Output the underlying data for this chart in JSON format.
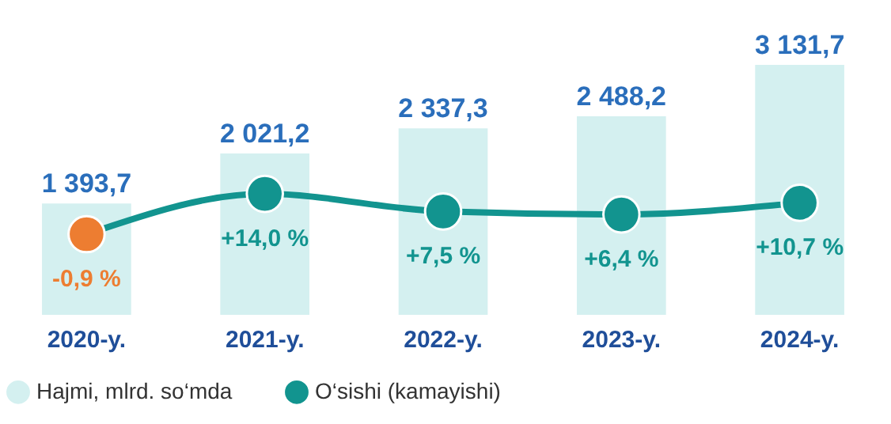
{
  "chart_data": {
    "type": "bar",
    "categories": [
      "2020-y.",
      "2021-y.",
      "2022-y.",
      "2023-y.",
      "2024-y."
    ],
    "legend": "bottom",
    "marker": "circle",
    "series": [
      {
        "name": "Hajmi, mlrd. so‘mda",
        "color": "#d4f0f0",
        "values": [
          1393.7,
          2021.2,
          2337.3,
          2488.2,
          3131.7
        ],
        "value_labels": [
          "1 393,7",
          "2 021,2",
          "2 337,3",
          "2 488,2",
          "3 131,7"
        ]
      },
      {
        "name": "O‘sishi (kamayishi)",
        "type": "line",
        "axis": "y2",
        "color": "#12948f",
        "colors": [
          "#ed7d31",
          "#12948f",
          "#12948f",
          "#12948f",
          "#12948f"
        ],
        "values": [
          -0.9,
          14.0,
          7.5,
          6.4,
          10.7
        ],
        "value_labels": [
          "-0,9 %",
          "+14,0 %",
          "+7,5 %",
          "+6,4 %",
          "+10,7 %"
        ]
      }
    ]
  }
}
